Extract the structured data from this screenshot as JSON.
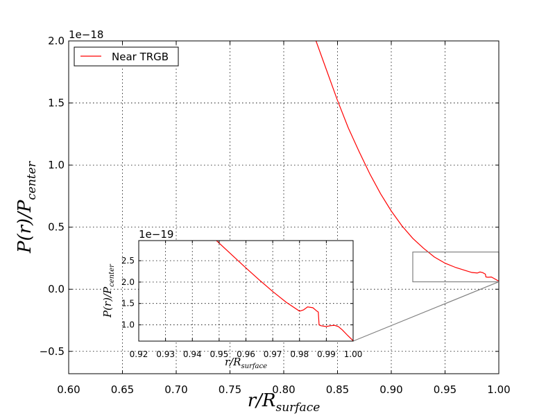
{
  "chart_data": [
    {
      "id": "main",
      "type": "line",
      "xlabel": "r/R",
      "xlabel_sub": "surface",
      "ylabel": "P(r)/P",
      "ylabel_sub": "center",
      "xlim": [
        0.6,
        1.0
      ],
      "ylim": [
        -0.68,
        2.0
      ],
      "y_multiplier": "1e−18",
      "x_ticks": [
        "0.60",
        "0.65",
        "0.70",
        "0.75",
        "0.80",
        "0.85",
        "0.90",
        "0.95",
        "1.00"
      ],
      "y_ticks": [
        "−0.5",
        "0.0",
        "0.5",
        "1.0",
        "1.5",
        "2.0"
      ],
      "grid": true,
      "legend": "top-left",
      "series": [
        {
          "name": "Near TRGB",
          "color": "#ff0000",
          "x": [
            0.83,
            0.84,
            0.85,
            0.86,
            0.87,
            0.88,
            0.89,
            0.9,
            0.91,
            0.92,
            0.93,
            0.94,
            0.95,
            0.96,
            0.97,
            0.975,
            0.98,
            0.9825,
            0.985,
            0.9875,
            0.988,
            0.99,
            0.993,
            0.996,
            1.0
          ],
          "y": [
            2.0,
            1.76,
            1.52,
            1.3,
            1.11,
            0.93,
            0.77,
            0.63,
            0.51,
            0.41,
            0.33,
            0.26,
            0.21,
            0.175,
            0.148,
            0.135,
            0.131,
            0.139,
            0.134,
            0.122,
            0.099,
            0.097,
            0.099,
            0.085,
            0.065
          ]
        }
      ],
      "zoom_box": {
        "x": [
          0.92,
          1.0
        ],
        "y": [
          0.06,
          0.3
        ]
      }
    },
    {
      "id": "inset",
      "type": "line",
      "xlabel": "r/R",
      "xlabel_sub": "surface",
      "ylabel": "P(r)/P",
      "ylabel_sub": "center",
      "xlim": [
        0.92,
        1.0
      ],
      "ylim": [
        0.62,
        2.97
      ],
      "y_multiplier": "1e−19",
      "x_ticks": [
        "0.92",
        "0.93",
        "0.94",
        "0.95",
        "0.96",
        "0.97",
        "0.98",
        "0.99",
        "1.00"
      ],
      "y_ticks": [
        "1.0",
        "1.5",
        "2.0",
        "2.5"
      ],
      "grid": true,
      "series": [
        {
          "color": "#ff0000",
          "x": [
            0.949,
            0.955,
            0.96,
            0.965,
            0.97,
            0.975,
            0.98,
            0.9815,
            0.983,
            0.985,
            0.9865,
            0.987,
            0.9873,
            0.988,
            0.99,
            0.9915,
            0.993,
            0.9945,
            0.996,
            0.998,
            1.0
          ],
          "y": [
            2.97,
            2.62,
            2.33,
            2.05,
            1.78,
            1.53,
            1.32,
            1.35,
            1.42,
            1.4,
            1.32,
            1.3,
            1.0,
            0.98,
            0.96,
            0.98,
            0.99,
            0.96,
            0.88,
            0.75,
            0.63
          ]
        }
      ]
    }
  ]
}
